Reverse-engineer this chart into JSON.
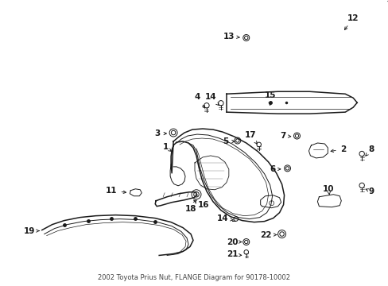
{
  "title": "2002 Toyota Prius Nut, FLANGE Diagram for 90178-10002",
  "bg_color": "#ffffff",
  "line_color": "#1a1a1a",
  "fig_width": 4.89,
  "fig_height": 3.6,
  "dpi": 100,
  "xlim": [
    0,
    489
  ],
  "ylim": [
    0,
    360
  ]
}
